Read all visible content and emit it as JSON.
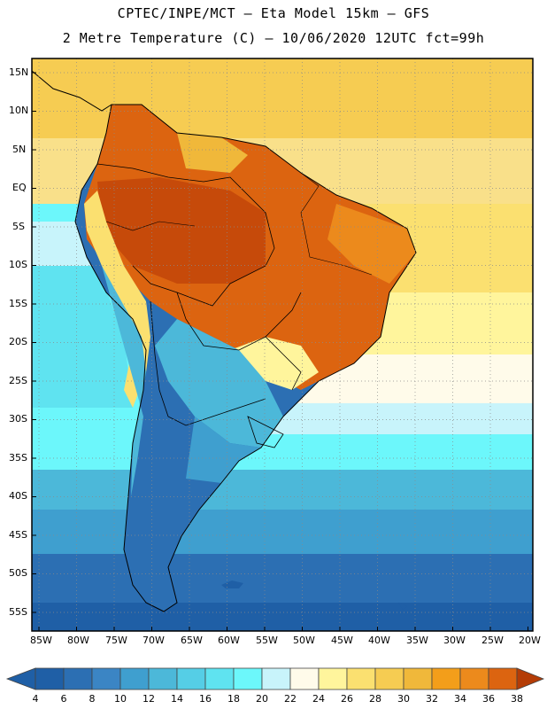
{
  "header": {
    "line1": "CPTEC/INPE/MCT –  Eta Model 15km – GFS",
    "line2": "2 Metre Temperature (C) – 10/06/2020 12UTC fct=99h"
  },
  "lat_labels": [
    "15N",
    "10N",
    "5N",
    "EQ",
    "5S",
    "10S",
    "15S",
    "20S",
    "25S",
    "30S",
    "35S",
    "40S",
    "45S",
    "50S",
    "55S"
  ],
  "lon_labels": [
    "85W",
    "80W",
    "75W",
    "70W",
    "65W",
    "60W",
    "55W",
    "50W",
    "45W",
    "40W",
    "35W",
    "30W",
    "25W",
    "20W"
  ],
  "colorbar": {
    "labels": [
      "4",
      "6",
      "8",
      "10",
      "12",
      "14",
      "16",
      "18",
      "20",
      "22",
      "24",
      "26",
      "28",
      "30",
      "32",
      "34",
      "36",
      "38"
    ],
    "colors": [
      "#1f5fa6",
      "#2c6fb3",
      "#3b85c4",
      "#3f9fcf",
      "#4cb8d9",
      "#55cee6",
      "#5fe3f0",
      "#6cf7fb",
      "#c8f4fb",
      "#fffbea",
      "#fff59c",
      "#fbe070",
      "#f6cc52",
      "#f0b83a",
      "#f39e1a",
      "#ec8a1c",
      "#dc6410",
      "#c64a0a",
      "#b43c06"
    ]
  }
}
